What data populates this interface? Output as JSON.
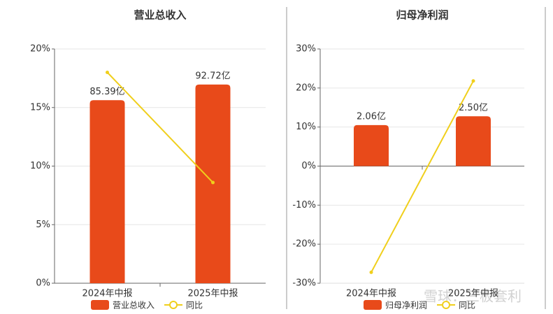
{
  "chart_data": [
    {
      "type": "bar-line",
      "title": "营业总收入",
      "categories": [
        "2024年中报",
        "2025年中报"
      ],
      "series": [
        {
          "name": "营业总收入",
          "color": "#e84a1a",
          "axis": "y2",
          "values": [
            85.39,
            92.72
          ],
          "value_labels": [
            "85.39亿",
            "92.72亿"
          ]
        },
        {
          "name": "同比",
          "color": "#f0cf1c",
          "values": [
            18.0,
            8.6
          ]
        }
      ],
      "ylim": [
        0,
        20
      ],
      "yticks": [
        {
          "value": 0,
          "label": "0%"
        },
        {
          "value": 5,
          "label": "5%"
        },
        {
          "value": 10,
          "label": "10%"
        },
        {
          "value": 15,
          "label": "15%"
        },
        {
          "value": 20,
          "label": "20%"
        }
      ],
      "y2lim": [
        0,
        109.3
      ],
      "grid": true,
      "legend": "bottom"
    },
    {
      "type": "bar-line",
      "title": "归母净利润",
      "categories": [
        "2024年中报",
        "2025年中报"
      ],
      "series": [
        {
          "name": "归母净利润",
          "color": "#e84a1a",
          "axis": "y2",
          "values": [
            2.06,
            2.5
          ],
          "value_labels": [
            "2.06亿",
            "2.50亿"
          ]
        },
        {
          "name": "同比",
          "color": "#f0cf1c",
          "values": [
            -27.2,
            21.8
          ]
        }
      ],
      "ylim": [
        -30,
        30
      ],
      "yticks": [
        {
          "value": -30,
          "label": "-30%"
        },
        {
          "value": -20,
          "label": "-20%"
        },
        {
          "value": -10,
          "label": "-10%"
        },
        {
          "value": 0,
          "label": "0%"
        },
        {
          "value": 10,
          "label": "10%"
        },
        {
          "value": 20,
          "label": "20%"
        },
        {
          "value": 30,
          "label": "30%"
        }
      ],
      "y2lim": [
        -5.88,
        5.88
      ],
      "grid": true,
      "legend": "bottom"
    }
  ],
  "watermark": "雪球：三板套利"
}
